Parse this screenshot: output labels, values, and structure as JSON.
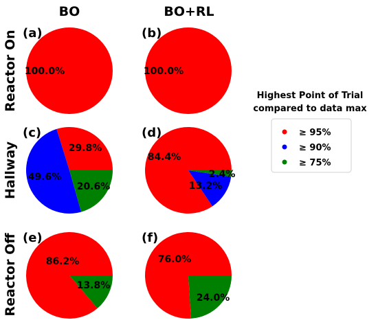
{
  "column_titles": [
    "BO",
    "BO+RL"
  ],
  "row_titles": [
    "Reactor On",
    "Hallway",
    "Reactor Off"
  ],
  "legend": {
    "title_line1": "Highest Point of Trial",
    "title_line2": "compared to data max",
    "entries": [
      "≥ 95%",
      "≥ 90%",
      "≥ 75%"
    ]
  },
  "colors": {
    "≥ 95%": "#ff0000",
    "≥ 90%": "#0000ff",
    "≥ 75%": "#008000"
  },
  "chart_data": [
    {
      "type": "pie",
      "panel": "(a)",
      "row": "Reactor On",
      "column": "BO",
      "slices": [
        {
          "category": "≥ 95%",
          "value": 100.0,
          "label": "100.0%"
        }
      ]
    },
    {
      "type": "pie",
      "panel": "(b)",
      "row": "Reactor On",
      "column": "BO+RL",
      "slices": [
        {
          "category": "≥ 95%",
          "value": 100.0,
          "label": "100.0%"
        }
      ]
    },
    {
      "type": "pie",
      "panel": "(c)",
      "row": "Hallway",
      "column": "BO",
      "slices": [
        {
          "category": "≥ 95%",
          "value": 29.8,
          "label": "29.8%"
        },
        {
          "category": "≥ 90%",
          "value": 49.6,
          "label": "49.6%"
        },
        {
          "category": "≥ 75%",
          "value": 20.6,
          "label": "20.6%"
        }
      ]
    },
    {
      "type": "pie",
      "panel": "(d)",
      "row": "Hallway",
      "column": "BO+RL",
      "slices": [
        {
          "category": "≥ 95%",
          "value": 84.4,
          "label": "84.4%"
        },
        {
          "category": "≥ 90%",
          "value": 13.2,
          "label": "13.2%"
        },
        {
          "category": "≥ 75%",
          "value": 2.4,
          "label": "2.4%"
        }
      ]
    },
    {
      "type": "pie",
      "panel": "(e)",
      "row": "Reactor Off",
      "column": "BO",
      "slices": [
        {
          "category": "≥ 95%",
          "value": 86.2,
          "label": "86.2%"
        },
        {
          "category": "≥ 75%",
          "value": 13.8,
          "label": "13.8%"
        }
      ]
    },
    {
      "type": "pie",
      "panel": "(f)",
      "row": "Reactor Off",
      "column": "BO+RL",
      "slices": [
        {
          "category": "≥ 95%",
          "value": 76.0,
          "label": "76.0%"
        },
        {
          "category": "≥ 75%",
          "value": 24.0,
          "label": "24.0%"
        }
      ]
    }
  ]
}
